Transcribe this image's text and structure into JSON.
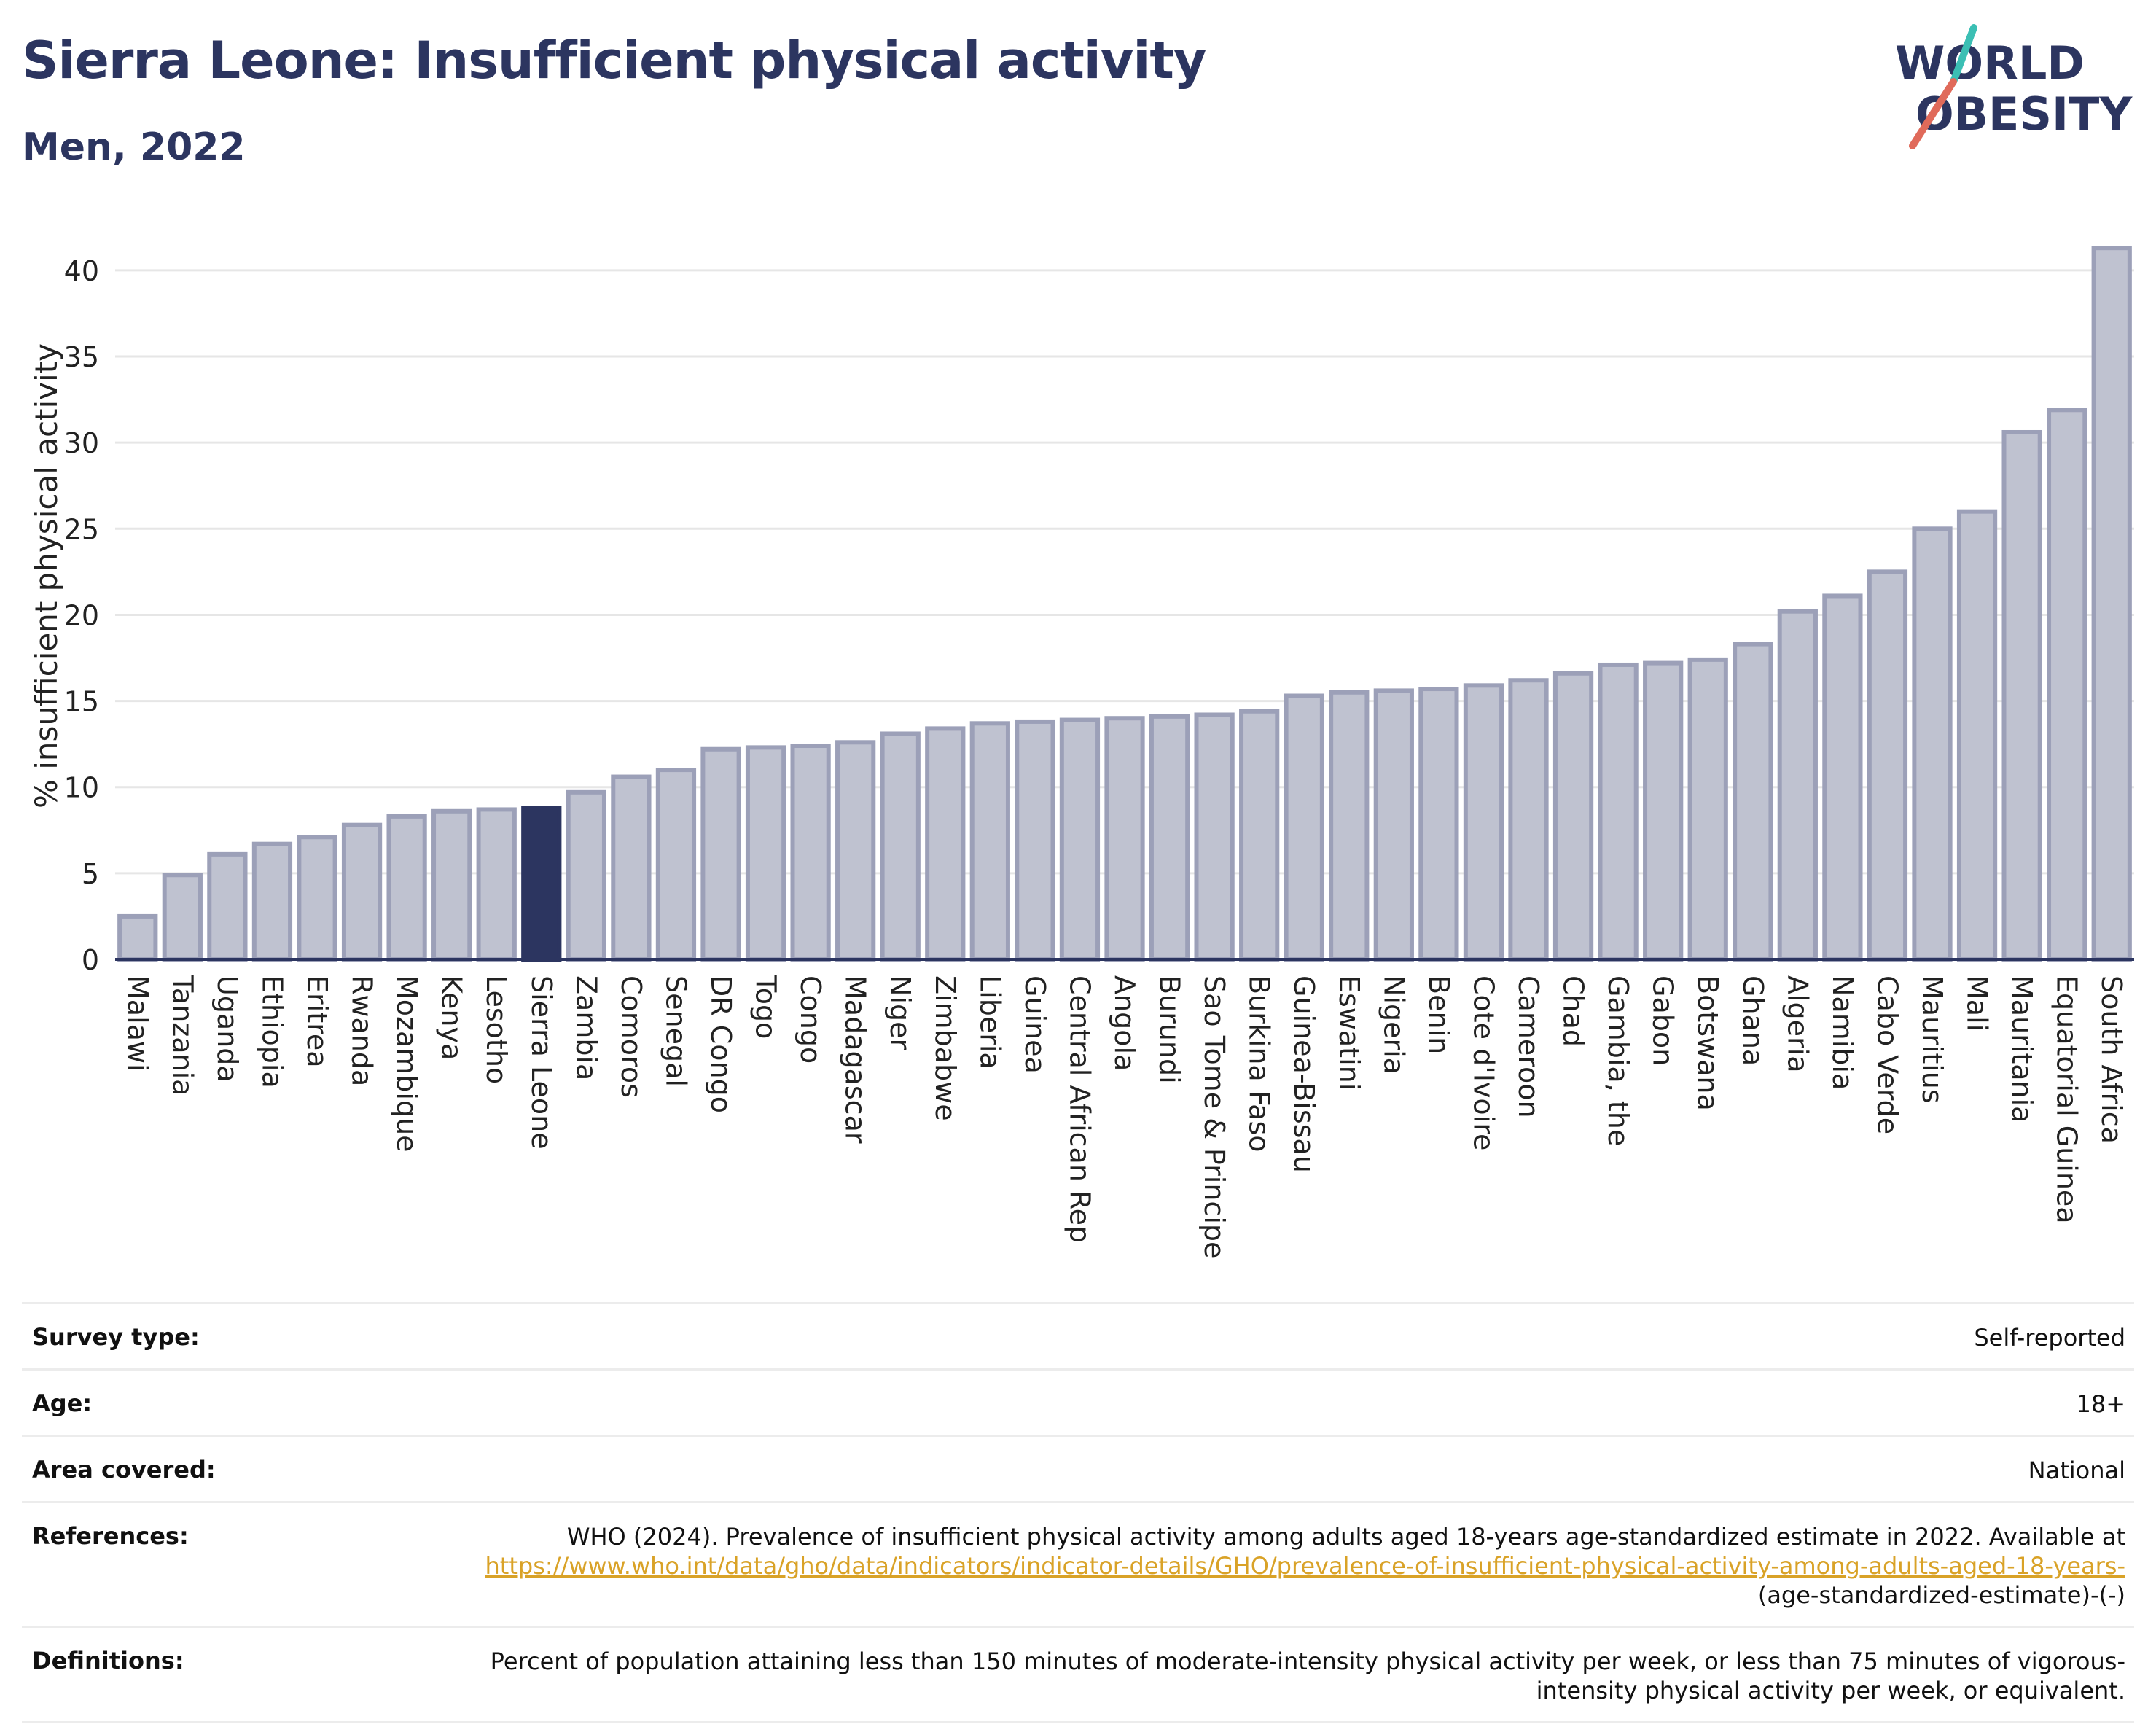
{
  "header": {
    "title": "Sierra Leone: Insufficient physical activity",
    "subtitle": "Men, 2022"
  },
  "logo": {
    "line1": "WORLD",
    "line2": "OBESITY",
    "text_color": "#2c3560",
    "slash_colors": [
      "#e06a5a",
      "#3bbfb4"
    ]
  },
  "chart_data": {
    "type": "bar",
    "categories": [
      "Malawi",
      "Tanzania",
      "Uganda",
      "Ethiopia",
      "Eritrea",
      "Rwanda",
      "Mozambique",
      "Kenya",
      "Lesotho",
      "Sierra Leone",
      "Zambia",
      "Comoros",
      "Senegal",
      "DR Congo",
      "Togo",
      "Congo",
      "Madagascar",
      "Niger",
      "Zimbabwe",
      "Liberia",
      "Guinea",
      "Central African Rep",
      "Angola",
      "Burundi",
      "Sao Tome & Principe",
      "Burkina Faso",
      "Guinea-Bissau",
      "Eswatini",
      "Nigeria",
      "Benin",
      "Cote d'Ivoire",
      "Cameroon",
      "Chad",
      "Gambia, the",
      "Gabon",
      "Botswana",
      "Ghana",
      "Algeria",
      "Namibia",
      "Cabo Verde",
      "Mauritius",
      "Mali",
      "Mauritania",
      "Equatorial Guinea",
      "South Africa"
    ],
    "values": [
      2.5,
      4.9,
      6.1,
      6.7,
      7.1,
      7.8,
      8.3,
      8.6,
      8.7,
      8.8,
      9.7,
      10.6,
      11.0,
      12.2,
      12.3,
      12.4,
      12.6,
      13.1,
      13.4,
      13.7,
      13.8,
      13.9,
      14.0,
      14.1,
      14.2,
      14.4,
      15.3,
      15.5,
      15.6,
      15.7,
      15.9,
      16.2,
      16.6,
      17.1,
      17.2,
      17.4,
      18.3,
      20.2,
      21.1,
      22.5,
      25.0,
      26.0,
      30.6,
      31.9,
      41.3
    ],
    "highlight": "Sierra Leone",
    "ylabel": "% insufficient physical activity",
    "xlabel": "",
    "ylim": [
      0,
      43
    ],
    "yticks": [
      0,
      5,
      10,
      15,
      20,
      25,
      30,
      35,
      40
    ],
    "grid": true,
    "colors": {
      "bar": "#bfc2d0",
      "bar_edge": "#9ca0b8",
      "highlight": "#2c3560"
    }
  },
  "info": {
    "survey_type": {
      "label": "Survey type:",
      "value": "Self-reported"
    },
    "age": {
      "label": "Age:",
      "value": "18+"
    },
    "area": {
      "label": "Area covered:",
      "value": "National"
    },
    "references": {
      "label": "References:",
      "text": "WHO (2024). Prevalence of insufficient physical activity among adults aged 18-years age-standardized estimate in 2022. Available at",
      "link": "https://www.who.int/data/gho/data/indicators/indicator-details/GHO/prevalence-of-insufficient-physical-activity-among-adults-aged-18-years-",
      "suffix": "(age-standardized-estimate)-(-)"
    },
    "definitions": {
      "label": "Definitions:",
      "value": "Percent of population attaining less than 150 minutes of moderate-intensity physical activity per week, or less than 75 minutes of vigorous-intensity physical activity per week, or equivalent."
    },
    "link_color": "#d9a227"
  }
}
